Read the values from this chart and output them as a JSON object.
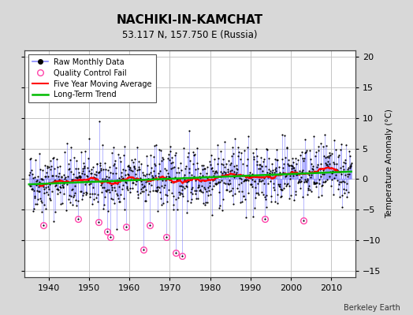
{
  "title": "NACHIKI-IN-KAMCHAT",
  "subtitle": "53.117 N, 157.750 E (Russia)",
  "ylabel": "Temperature Anomaly (°C)",
  "credit": "Berkeley Earth",
  "ylim": [
    -16,
    21
  ],
  "yticks": [
    -15,
    -10,
    -5,
    0,
    5,
    10,
    15,
    20
  ],
  "xlim": [
    1934,
    2016
  ],
  "xticks": [
    1940,
    1950,
    1960,
    1970,
    1980,
    1990,
    2000,
    2010
  ],
  "bg_color": "#d8d8d8",
  "plot_bg_color": "#ffffff",
  "grid_color": "#bbbbbb",
  "raw_line_color": "#8888ff",
  "raw_dot_color": "#000000",
  "qc_fail_color": "#ff44aa",
  "moving_avg_color": "#ff0000",
  "trend_color": "#00bb00",
  "seed": 42
}
